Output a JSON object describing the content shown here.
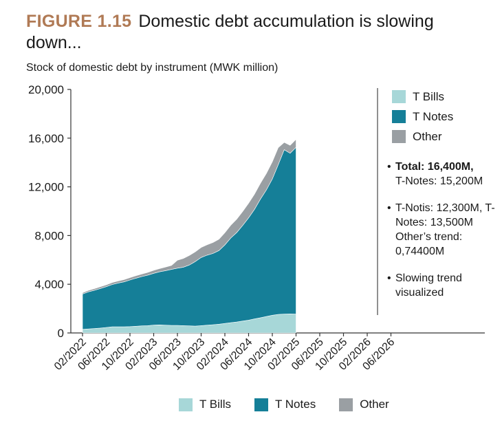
{
  "header": {
    "figure_label": "FIGURE 1.15",
    "title": "Domestic debt accumulation is slowing down..."
  },
  "colors": {
    "t_bills": "#a7d7d8",
    "t_notes": "#157f98",
    "other": "#9a9fa3"
  },
  "chart_data": {
    "type": "area",
    "stacked": true,
    "title": "Domestic debt accumulation is slowing down...",
    "ylabel": "Stock of domestic debt by instrument (MWK million)",
    "ylim": [
      0,
      20000
    ],
    "yticks": [
      "0",
      "4,000",
      "8,000",
      "12,000",
      "16,000",
      "20,000"
    ],
    "ytick_values": [
      0,
      4000,
      8000,
      12000,
      16000,
      20000
    ],
    "xticks": [
      "02/2022",
      "06/2022",
      "10/2022",
      "02/2023",
      "06/2023",
      "10/2023",
      "02/2024",
      "06/2024",
      "10/2024",
      "02/2025",
      "06/2025",
      "10/2025",
      "02/2026",
      "06/2026"
    ],
    "x": [
      "02/2022",
      "03/2022",
      "04/2022",
      "05/2022",
      "06/2022",
      "07/2022",
      "08/2022",
      "09/2022",
      "10/2022",
      "11/2022",
      "12/2022",
      "01/2023",
      "02/2023",
      "03/2023",
      "04/2023",
      "05/2023",
      "06/2023",
      "07/2023",
      "08/2023",
      "09/2023",
      "10/2023",
      "11/2023",
      "12/2023",
      "01/2024",
      "02/2024",
      "03/2024",
      "04/2024",
      "05/2024",
      "06/2024",
      "07/2024",
      "08/2024",
      "09/2024",
      "10/2024",
      "11/2024",
      "12/2024",
      "01/2025",
      "02/2025"
    ],
    "series": [
      {
        "name": "T Bills",
        "values": [
          300,
          330,
          360,
          400,
          450,
          500,
          500,
          500,
          520,
          550,
          580,
          600,
          650,
          660,
          640,
          620,
          620,
          600,
          580,
          560,
          600,
          640,
          680,
          720,
          780,
          850,
          900,
          980,
          1050,
          1150,
          1250,
          1350,
          1450,
          1520,
          1550,
          1560,
          1550
        ]
      },
      {
        "name": "T Notes",
        "values": [
          2900,
          3050,
          3150,
          3250,
          3350,
          3480,
          3600,
          3700,
          3830,
          3950,
          4050,
          4150,
          4250,
          4360,
          4480,
          4600,
          4700,
          4800,
          5000,
          5300,
          5600,
          5750,
          5850,
          6050,
          6450,
          6950,
          7350,
          7850,
          8400,
          9000,
          9750,
          10400,
          11200,
          12300,
          13500,
          13200,
          13700
        ]
      },
      {
        "name": "Other",
        "values": [
          100,
          120,
          130,
          140,
          150,
          160,
          170,
          180,
          190,
          200,
          210,
          220,
          240,
          260,
          290,
          330,
          650,
          720,
          780,
          800,
          820,
          850,
          900,
          930,
          1000,
          1050,
          1100,
          1150,
          1200,
          1250,
          1300,
          1350,
          1400,
          1400,
          600,
          650,
          650
        ]
      }
    ],
    "legend": [
      "T Bills",
      "T Notes",
      "Other"
    ],
    "legend_position": "right"
  },
  "notes": [
    {
      "bold": "Total: 16,400M,",
      "text": "T-Notes: 15,200M"
    },
    {
      "bold": "",
      "text": "T-Notis: 12,300M, T-Notes: 13,500M Other’s trend: 0,74400M"
    },
    {
      "bold": "",
      "text": "Slowing trend visualized"
    }
  ]
}
